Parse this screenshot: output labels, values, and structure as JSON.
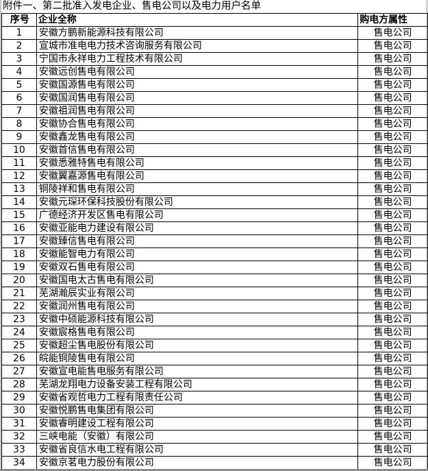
{
  "title": "附件一、第二批准入发电企业、售电公司以及电力用户名单",
  "headers": {
    "index": "序号",
    "name": "企业全称",
    "attribute": "购电方属性"
  },
  "rows": [
    {
      "index": "1",
      "name": "安徽方鹏新能源科技有限公司",
      "attribute": "售电公司"
    },
    {
      "index": "2",
      "name": "宣城市准电电力技术咨询服务有限公司",
      "attribute": "售电公司"
    },
    {
      "index": "3",
      "name": "宁国市永祥电力工程技术有限公司",
      "attribute": "售电公司"
    },
    {
      "index": "4",
      "name": "安徽远创售电有限公司",
      "attribute": "售电公司"
    },
    {
      "index": "5",
      "name": "安徽国源售电有限公司",
      "attribute": "售电公司"
    },
    {
      "index": "6",
      "name": "安徽国润售电有限公司",
      "attribute": "售电公司"
    },
    {
      "index": "7",
      "name": "安徽祖润售电有限公司",
      "attribute": "售电公司"
    },
    {
      "index": "8",
      "name": "安徽协合售电有限公司",
      "attribute": "售电公司"
    },
    {
      "index": "9",
      "name": "安徽鑫龙售电有限公司",
      "attribute": "售电公司"
    },
    {
      "index": "10",
      "name": "安徽首信售电有限公司",
      "attribute": "售电公司"
    },
    {
      "index": "11",
      "name": "安徽悉雅特售电有限公司",
      "attribute": "售电公司"
    },
    {
      "index": "12",
      "name": "安徽翼嘉源售电有限公司",
      "attribute": "售电公司"
    },
    {
      "index": "13",
      "name": "铜陵祥和售电有限公司",
      "attribute": "售电公司"
    },
    {
      "index": "14",
      "name": "安徽元琛环保科技股份有限公司",
      "attribute": "售电公司"
    },
    {
      "index": "15",
      "name": "广德经济开发区售电有限公司",
      "attribute": "售电公司"
    },
    {
      "index": "16",
      "name": "安徽亚能电力建设有限公司",
      "attribute": "售电公司"
    },
    {
      "index": "17",
      "name": "安徽臻信售电有限公司",
      "attribute": "售电公司"
    },
    {
      "index": "18",
      "name": "安徽能智电力有限公司",
      "attribute": "售电公司"
    },
    {
      "index": "19",
      "name": "安徽双石售电有限公司",
      "attribute": "售电公司"
    },
    {
      "index": "20",
      "name": "安徽国电太古售电有限公司",
      "attribute": "售电公司"
    },
    {
      "index": "21",
      "name": "芜湖瀚辰实业有限公司",
      "attribute": "售电公司"
    },
    {
      "index": "22",
      "name": "安徽润州售电有限公司",
      "attribute": "售电公司"
    },
    {
      "index": "23",
      "name": "安徽中硕能源科技有限公司",
      "attribute": "售电公司"
    },
    {
      "index": "24",
      "name": "安徽宸格售电有限公司",
      "attribute": "售电公司"
    },
    {
      "index": "25",
      "name": "安徽超尘售电股份有限公司",
      "attribute": "售电公司"
    },
    {
      "index": "26",
      "name": "皖能铜陵售电有限公司",
      "attribute": "售电公司"
    },
    {
      "index": "27",
      "name": "安徽宣电能售电服务有限公司",
      "attribute": "售电公司"
    },
    {
      "index": "28",
      "name": "芜湖龙翔电力设备安装工程有限公司",
      "attribute": "售电公司"
    },
    {
      "index": "29",
      "name": "安徽省观哲电力工程有限责任公司",
      "attribute": "售电公司"
    },
    {
      "index": "30",
      "name": "安徽悦鹏售电集团有限公司",
      "attribute": "售电公司"
    },
    {
      "index": "31",
      "name": "安徽睿明建设工程有限公司",
      "attribute": "售电公司"
    },
    {
      "index": "32",
      "name": "三峡电能（安徽）有限公司",
      "attribute": "售电公司"
    },
    {
      "index": "33",
      "name": "安徽省良信水电工程有限公司",
      "attribute": "售电公司"
    },
    {
      "index": "34",
      "name": "安徽京茗电力股份有限公司",
      "attribute": "售电公司"
    }
  ]
}
